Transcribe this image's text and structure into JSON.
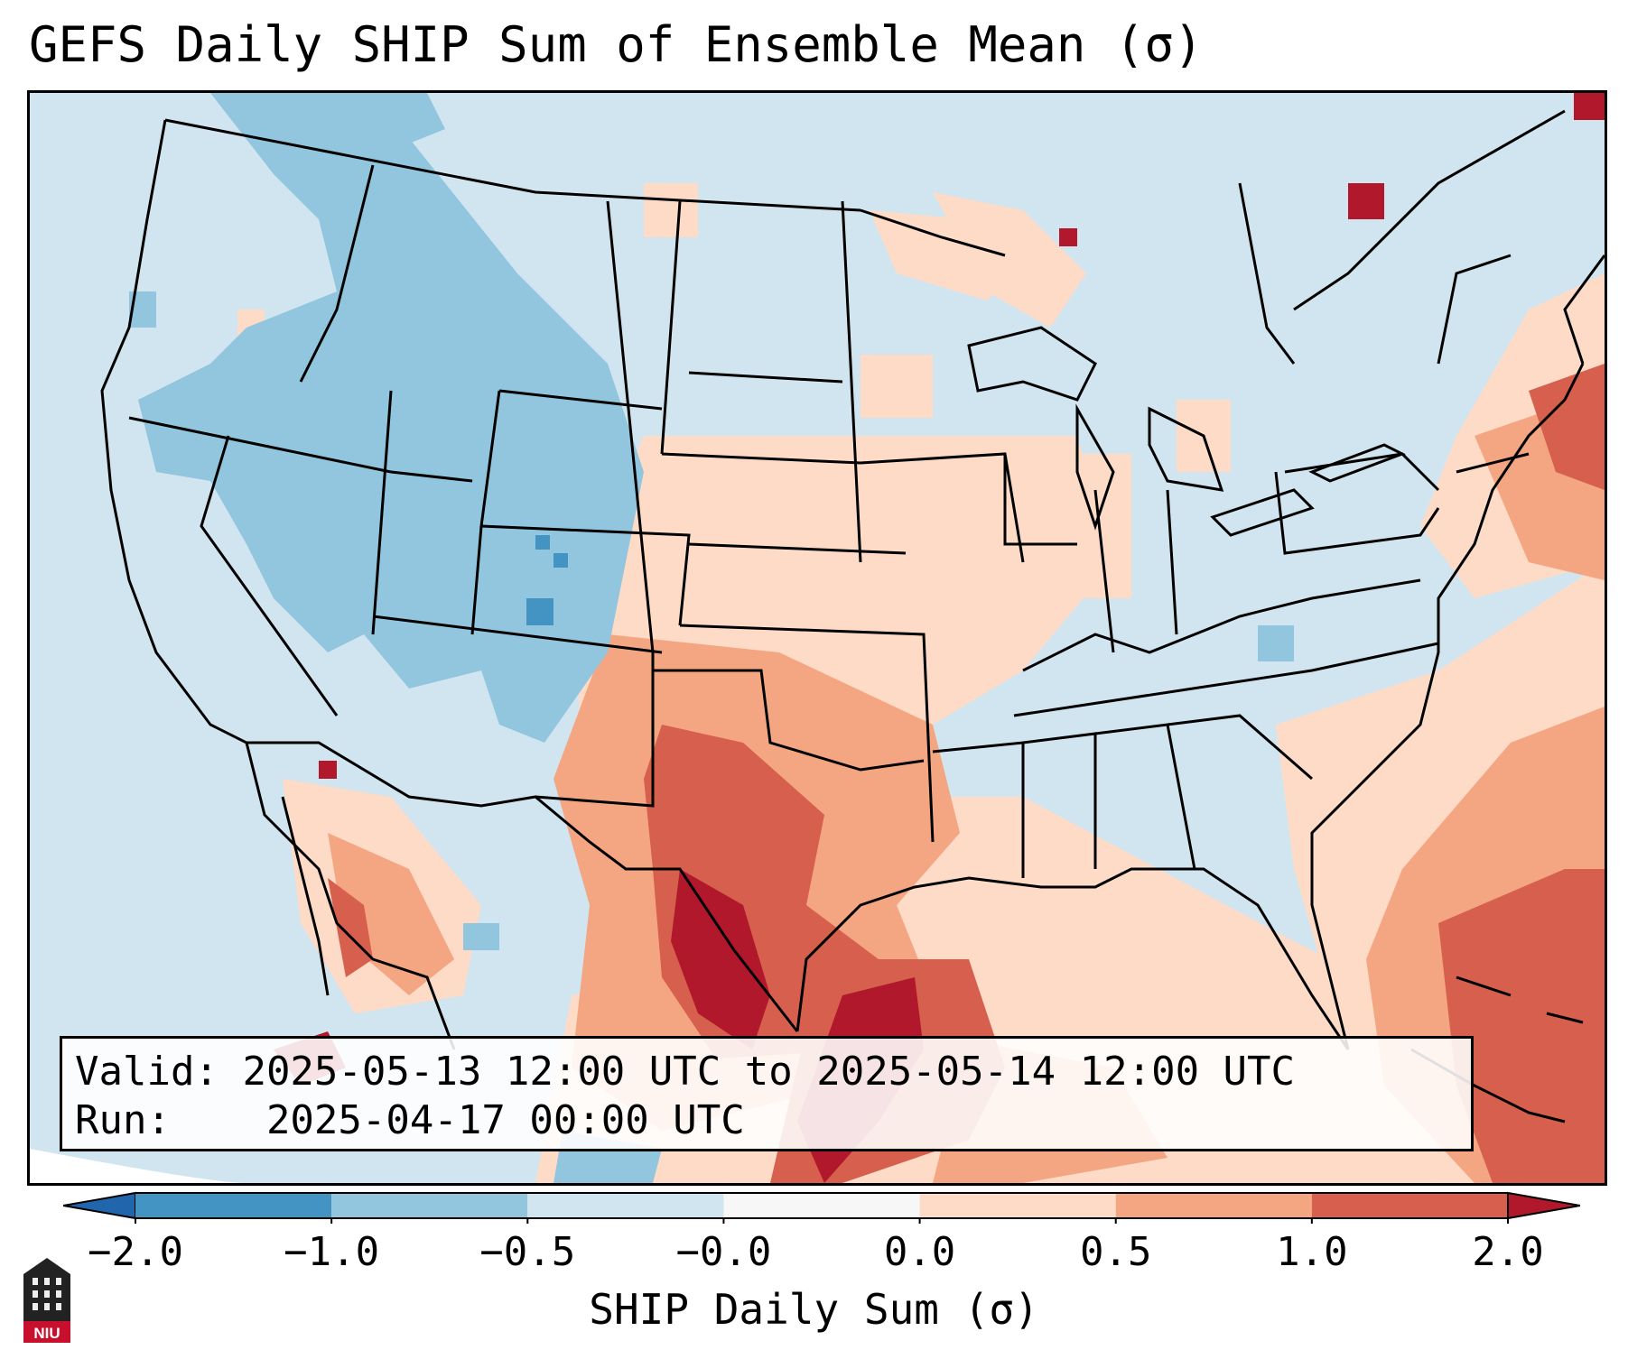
{
  "title": "GEFS Daily SHIP Sum of Ensemble Mean (σ)",
  "info": {
    "valid_label": "Valid:",
    "valid_value": "2025-05-13 12:00 UTC to 2025-05-14 12:00 UTC",
    "run_label": "Run:",
    "run_value": "2025-04-17 00:00 UTC"
  },
  "colorbar": {
    "label": "SHIP Daily Sum (σ)",
    "ticks": [
      "−2.0",
      "−1.0",
      "−0.5",
      "−0.0",
      "0.0",
      "0.5",
      "1.0",
      "2.0"
    ],
    "colors": [
      "#4393c3",
      "#92c5de",
      "#d1e5f0",
      "#f7f7f7",
      "#fddbc7",
      "#f4a582",
      "#d6604d"
    ],
    "under_color": "#2166ac",
    "over_color": "#b2182b"
  },
  "logo": {
    "text": "NIU"
  }
}
